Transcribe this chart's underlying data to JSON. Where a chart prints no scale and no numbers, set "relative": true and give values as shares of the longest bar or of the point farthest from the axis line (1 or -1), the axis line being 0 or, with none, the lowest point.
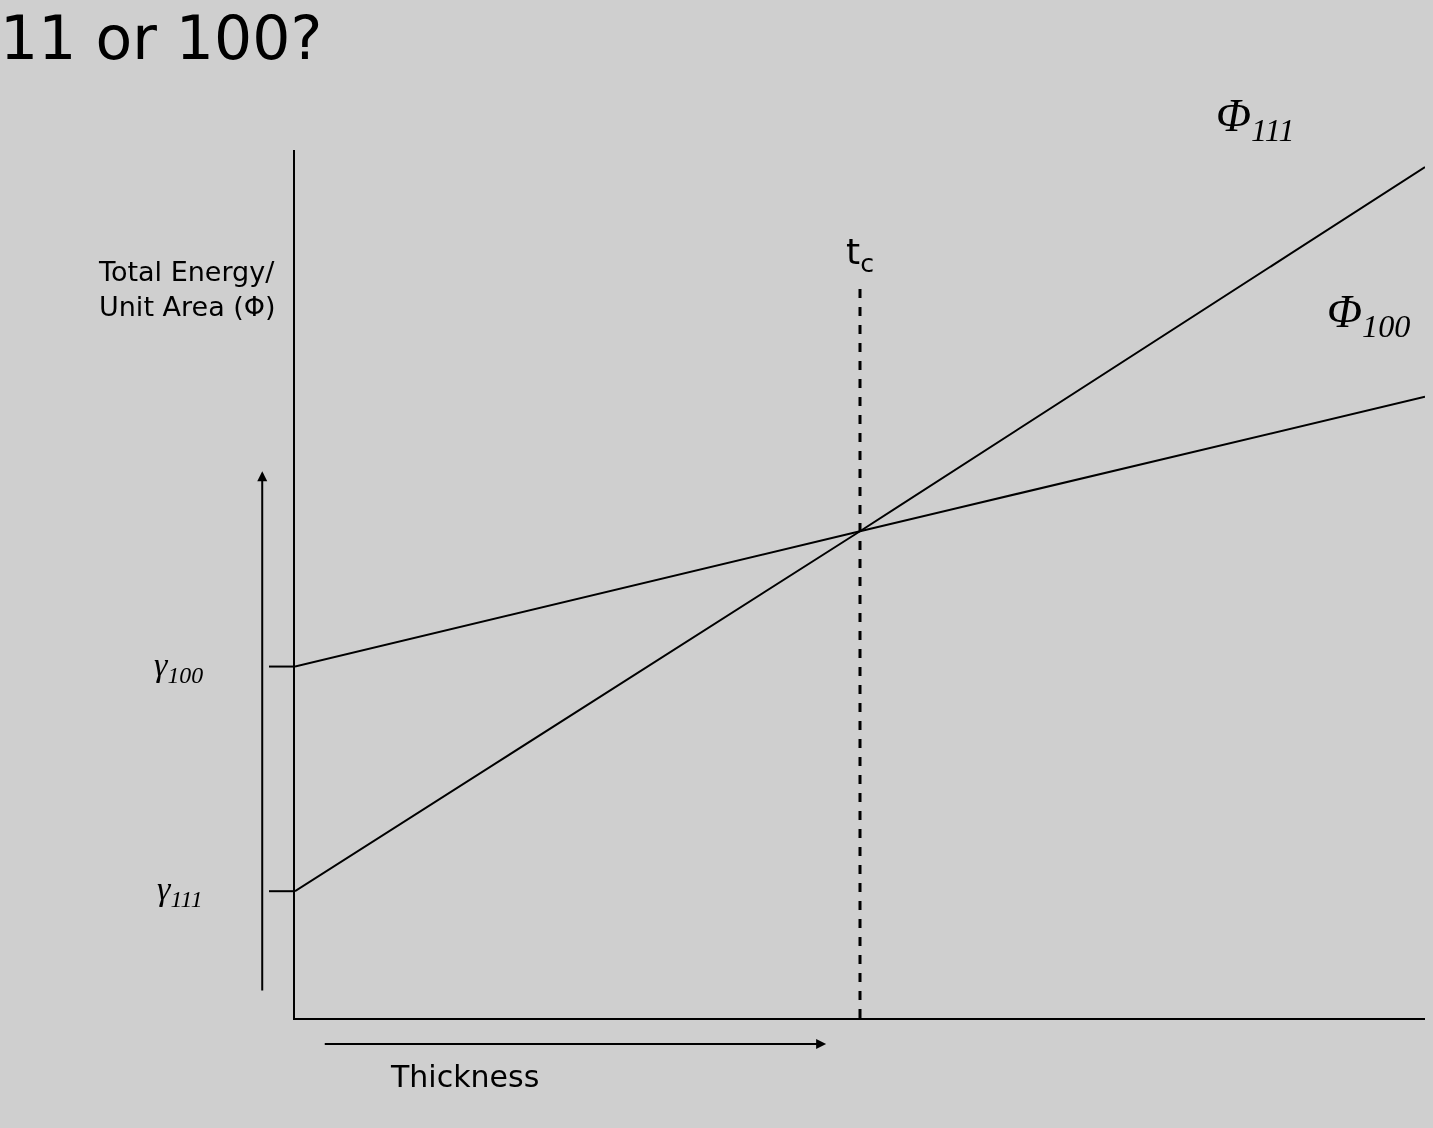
{
  "chart_data": {
    "type": "line",
    "title": "11 or 100?",
    "xlabel": "Thickness",
    "ylabel": "Total Energy/\nUnit Area (Φ)",
    "relative": true,
    "categories": [
      null,
      null,
      null
    ],
    "legend": false,
    "marker": "none",
    "line_style": "solid",
    "series": [
      {
        "name": "Φ$_{111}$",
        "color": "#000000",
        "values": [
          0.149,
          0.572,
          1
        ]
      },
      {
        "name": "Φ$_{100}$",
        "color": "#000000",
        "values": [
          0.413,
          0.572,
          0.73
        ]
      }
    ],
    "annotations": [
      "t$_{c}$",
      "γ$_{100}$",
      "γ$_{111}$"
    ]
  }
}
